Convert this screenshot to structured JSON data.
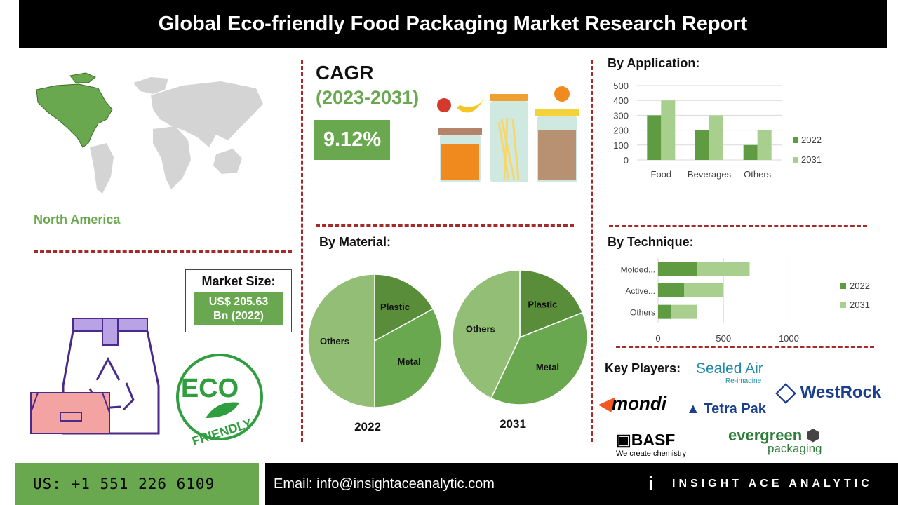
{
  "title": "Global  Eco-friendly Food Packaging Market Research Report",
  "region": {
    "label": "North America"
  },
  "cagr": {
    "label": "CAGR",
    "period": "(2023-2031)",
    "value": "9.12%"
  },
  "market_size": {
    "label": "Market Size:",
    "value_line1": "US$ 205.63",
    "value_line2": "Bn (2022)"
  },
  "eco_badge": {
    "line1": "ECO",
    "line2": "FRIENDLY"
  },
  "by_application": {
    "heading": "By Application:"
  },
  "by_material": {
    "heading": "By Material:"
  },
  "by_technique": {
    "heading": "By Technique:"
  },
  "key_players": {
    "heading": "Key Players:",
    "logos": [
      {
        "name": "Sealed Air",
        "tagline": "Re-imagine"
      },
      {
        "name": "WestRock"
      },
      {
        "name": "mondi"
      },
      {
        "name": "Tetra Pak"
      },
      {
        "name": "BASF",
        "tagline": "We create chemistry"
      },
      {
        "name": "evergreen",
        "tagline": "packaging"
      }
    ]
  },
  "footer": {
    "phone": "US: +1 551 226 6109",
    "email": "Email: info@insightaceanalytic.com",
    "brand": "INSIGHT ACE ANALYTIC",
    "brand_mark": "i"
  },
  "colors": {
    "dark_green": "#6aa84f",
    "mid_green": "#5f9b40",
    "light_green": "#a8cf8e",
    "pie_dark": "#5a8d3a",
    "pie_mid": "#6aa84f",
    "pie_light": "#92bf75",
    "divider": "#a52a2a"
  },
  "chart_data": [
    {
      "type": "bar",
      "title": "By Application:",
      "categories": [
        "Food",
        "Beverages",
        "Others"
      ],
      "series": [
        {
          "name": "2022",
          "values": [
            300,
            200,
            100
          ]
        },
        {
          "name": "2031",
          "values": [
            400,
            300,
            200
          ]
        }
      ],
      "ylim": [
        0,
        500
      ],
      "yticks": [
        0,
        100,
        200,
        300,
        400,
        500
      ],
      "legend": "right",
      "grid": true
    },
    {
      "type": "bar",
      "orientation": "horizontal",
      "stacked": true,
      "title": "By Technique:",
      "categories": [
        "Molded...",
        "Active...",
        "Others"
      ],
      "series": [
        {
          "name": "2022",
          "values": [
            300,
            200,
            100
          ]
        },
        {
          "name": "2031",
          "values": [
            400,
            300,
            200
          ]
        }
      ],
      "xlim": [
        0,
        1400
      ],
      "xticks": [
        0,
        500,
        1000
      ],
      "legend": "right",
      "grid": true
    },
    {
      "type": "pie",
      "title": "By Material:",
      "label": "2022",
      "slices": [
        {
          "name": "Plastic",
          "value": 17
        },
        {
          "name": "Metal",
          "value": 33
        },
        {
          "name": "Others",
          "value": 50
        }
      ]
    },
    {
      "type": "pie",
      "label": "2031",
      "slices": [
        {
          "name": "Plastic",
          "value": 19
        },
        {
          "name": "Metal",
          "value": 38
        },
        {
          "name": "Others",
          "value": 43
        }
      ]
    }
  ]
}
